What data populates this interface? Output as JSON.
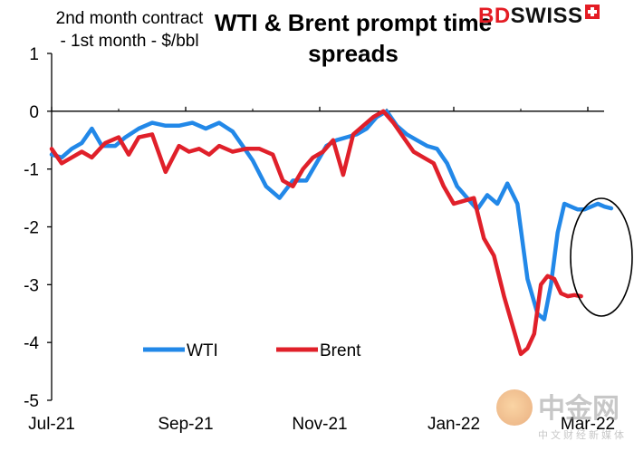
{
  "chart_data": {
    "type": "line",
    "title": "WTI & Brent prompt time spreads",
    "ylabel": "2nd month contract - 1st month - $/bbl",
    "ylim": [
      -5,
      1
    ],
    "yticks": [
      1,
      0,
      -1,
      -2,
      -3,
      -4,
      -5
    ],
    "xlim": [
      0,
      8.5
    ],
    "xticks": [
      {
        "label": "Jul-21",
        "pos": 0
      },
      {
        "label": "Sep-21",
        "pos": 2
      },
      {
        "label": "Nov-21",
        "pos": 4
      },
      {
        "label": "Jan-22",
        "pos": 6
      },
      {
        "label": "Mar-22",
        "pos": 8
      }
    ],
    "legend_position": "bottom-center",
    "grid": false,
    "series": [
      {
        "name": "WTI",
        "color": "#2288e8",
        "x": [
          0,
          0.15,
          0.3,
          0.45,
          0.6,
          0.75,
          0.95,
          1.1,
          1.3,
          1.5,
          1.7,
          1.9,
          2.1,
          2.3,
          2.5,
          2.7,
          2.85,
          3.0,
          3.2,
          3.4,
          3.6,
          3.8,
          3.95,
          4.1,
          4.25,
          4.4,
          4.55,
          4.7,
          4.85,
          5.0,
          5.15,
          5.3,
          5.45,
          5.6,
          5.75,
          5.9,
          6.05,
          6.2,
          6.35,
          6.5,
          6.65,
          6.8,
          6.95,
          7.1,
          7.25,
          7.35,
          7.45,
          7.55,
          7.65,
          7.75,
          7.85,
          7.95,
          8.05,
          8.15,
          8.25,
          8.35
        ],
        "values": [
          -0.75,
          -0.8,
          -0.65,
          -0.55,
          -0.3,
          -0.6,
          -0.6,
          -0.45,
          -0.3,
          -0.2,
          -0.25,
          -0.25,
          -0.2,
          -0.3,
          -0.2,
          -0.35,
          -0.6,
          -0.85,
          -1.3,
          -1.5,
          -1.2,
          -1.2,
          -0.9,
          -0.6,
          -0.5,
          -0.45,
          -0.4,
          -0.3,
          -0.1,
          0.0,
          -0.25,
          -0.4,
          -0.5,
          -0.6,
          -0.65,
          -0.9,
          -1.3,
          -1.5,
          -1.7,
          -1.45,
          -1.6,
          -1.25,
          -1.6,
          -2.9,
          -3.5,
          -3.6,
          -3.0,
          -2.1,
          -1.6,
          -1.65,
          -1.7,
          -1.7,
          -1.65,
          -1.6,
          -1.65,
          -1.68
        ]
      },
      {
        "name": "Brent",
        "color": "#e0202a",
        "x": [
          0,
          0.15,
          0.3,
          0.45,
          0.6,
          0.8,
          1.0,
          1.15,
          1.3,
          1.5,
          1.7,
          1.9,
          2.05,
          2.2,
          2.35,
          2.5,
          2.7,
          2.9,
          3.1,
          3.3,
          3.45,
          3.6,
          3.75,
          3.9,
          4.05,
          4.2,
          4.35,
          4.5,
          4.65,
          4.8,
          4.95,
          5.1,
          5.25,
          5.4,
          5.55,
          5.7,
          5.85,
          6.0,
          6.15,
          6.3,
          6.45,
          6.6,
          6.75,
          6.9,
          7.0,
          7.1,
          7.2,
          7.3,
          7.4,
          7.5,
          7.6,
          7.7,
          7.8,
          7.9
        ],
        "values": [
          -0.65,
          -0.9,
          -0.8,
          -0.7,
          -0.8,
          -0.55,
          -0.45,
          -0.75,
          -0.45,
          -0.4,
          -1.05,
          -0.6,
          -0.7,
          -0.65,
          -0.75,
          -0.6,
          -0.7,
          -0.65,
          -0.65,
          -0.75,
          -1.2,
          -1.3,
          -1.0,
          -0.8,
          -0.7,
          -0.5,
          -1.1,
          -0.4,
          -0.25,
          -0.1,
          0.0,
          -0.2,
          -0.45,
          -0.7,
          -0.8,
          -0.9,
          -1.3,
          -1.6,
          -1.55,
          -1.5,
          -2.2,
          -2.5,
          -3.2,
          -3.8,
          -4.2,
          -4.1,
          -3.85,
          -3.0,
          -2.85,
          -2.9,
          -3.15,
          -3.2,
          -3.18,
          -3.2
        ]
      }
    ],
    "annotation": "ellipse"
  },
  "watermark": {
    "brand_text": "中金网",
    "sub_text": "中文财经新媒体"
  },
  "logo": {
    "bd": "BD",
    "swiss": "SWISS"
  }
}
